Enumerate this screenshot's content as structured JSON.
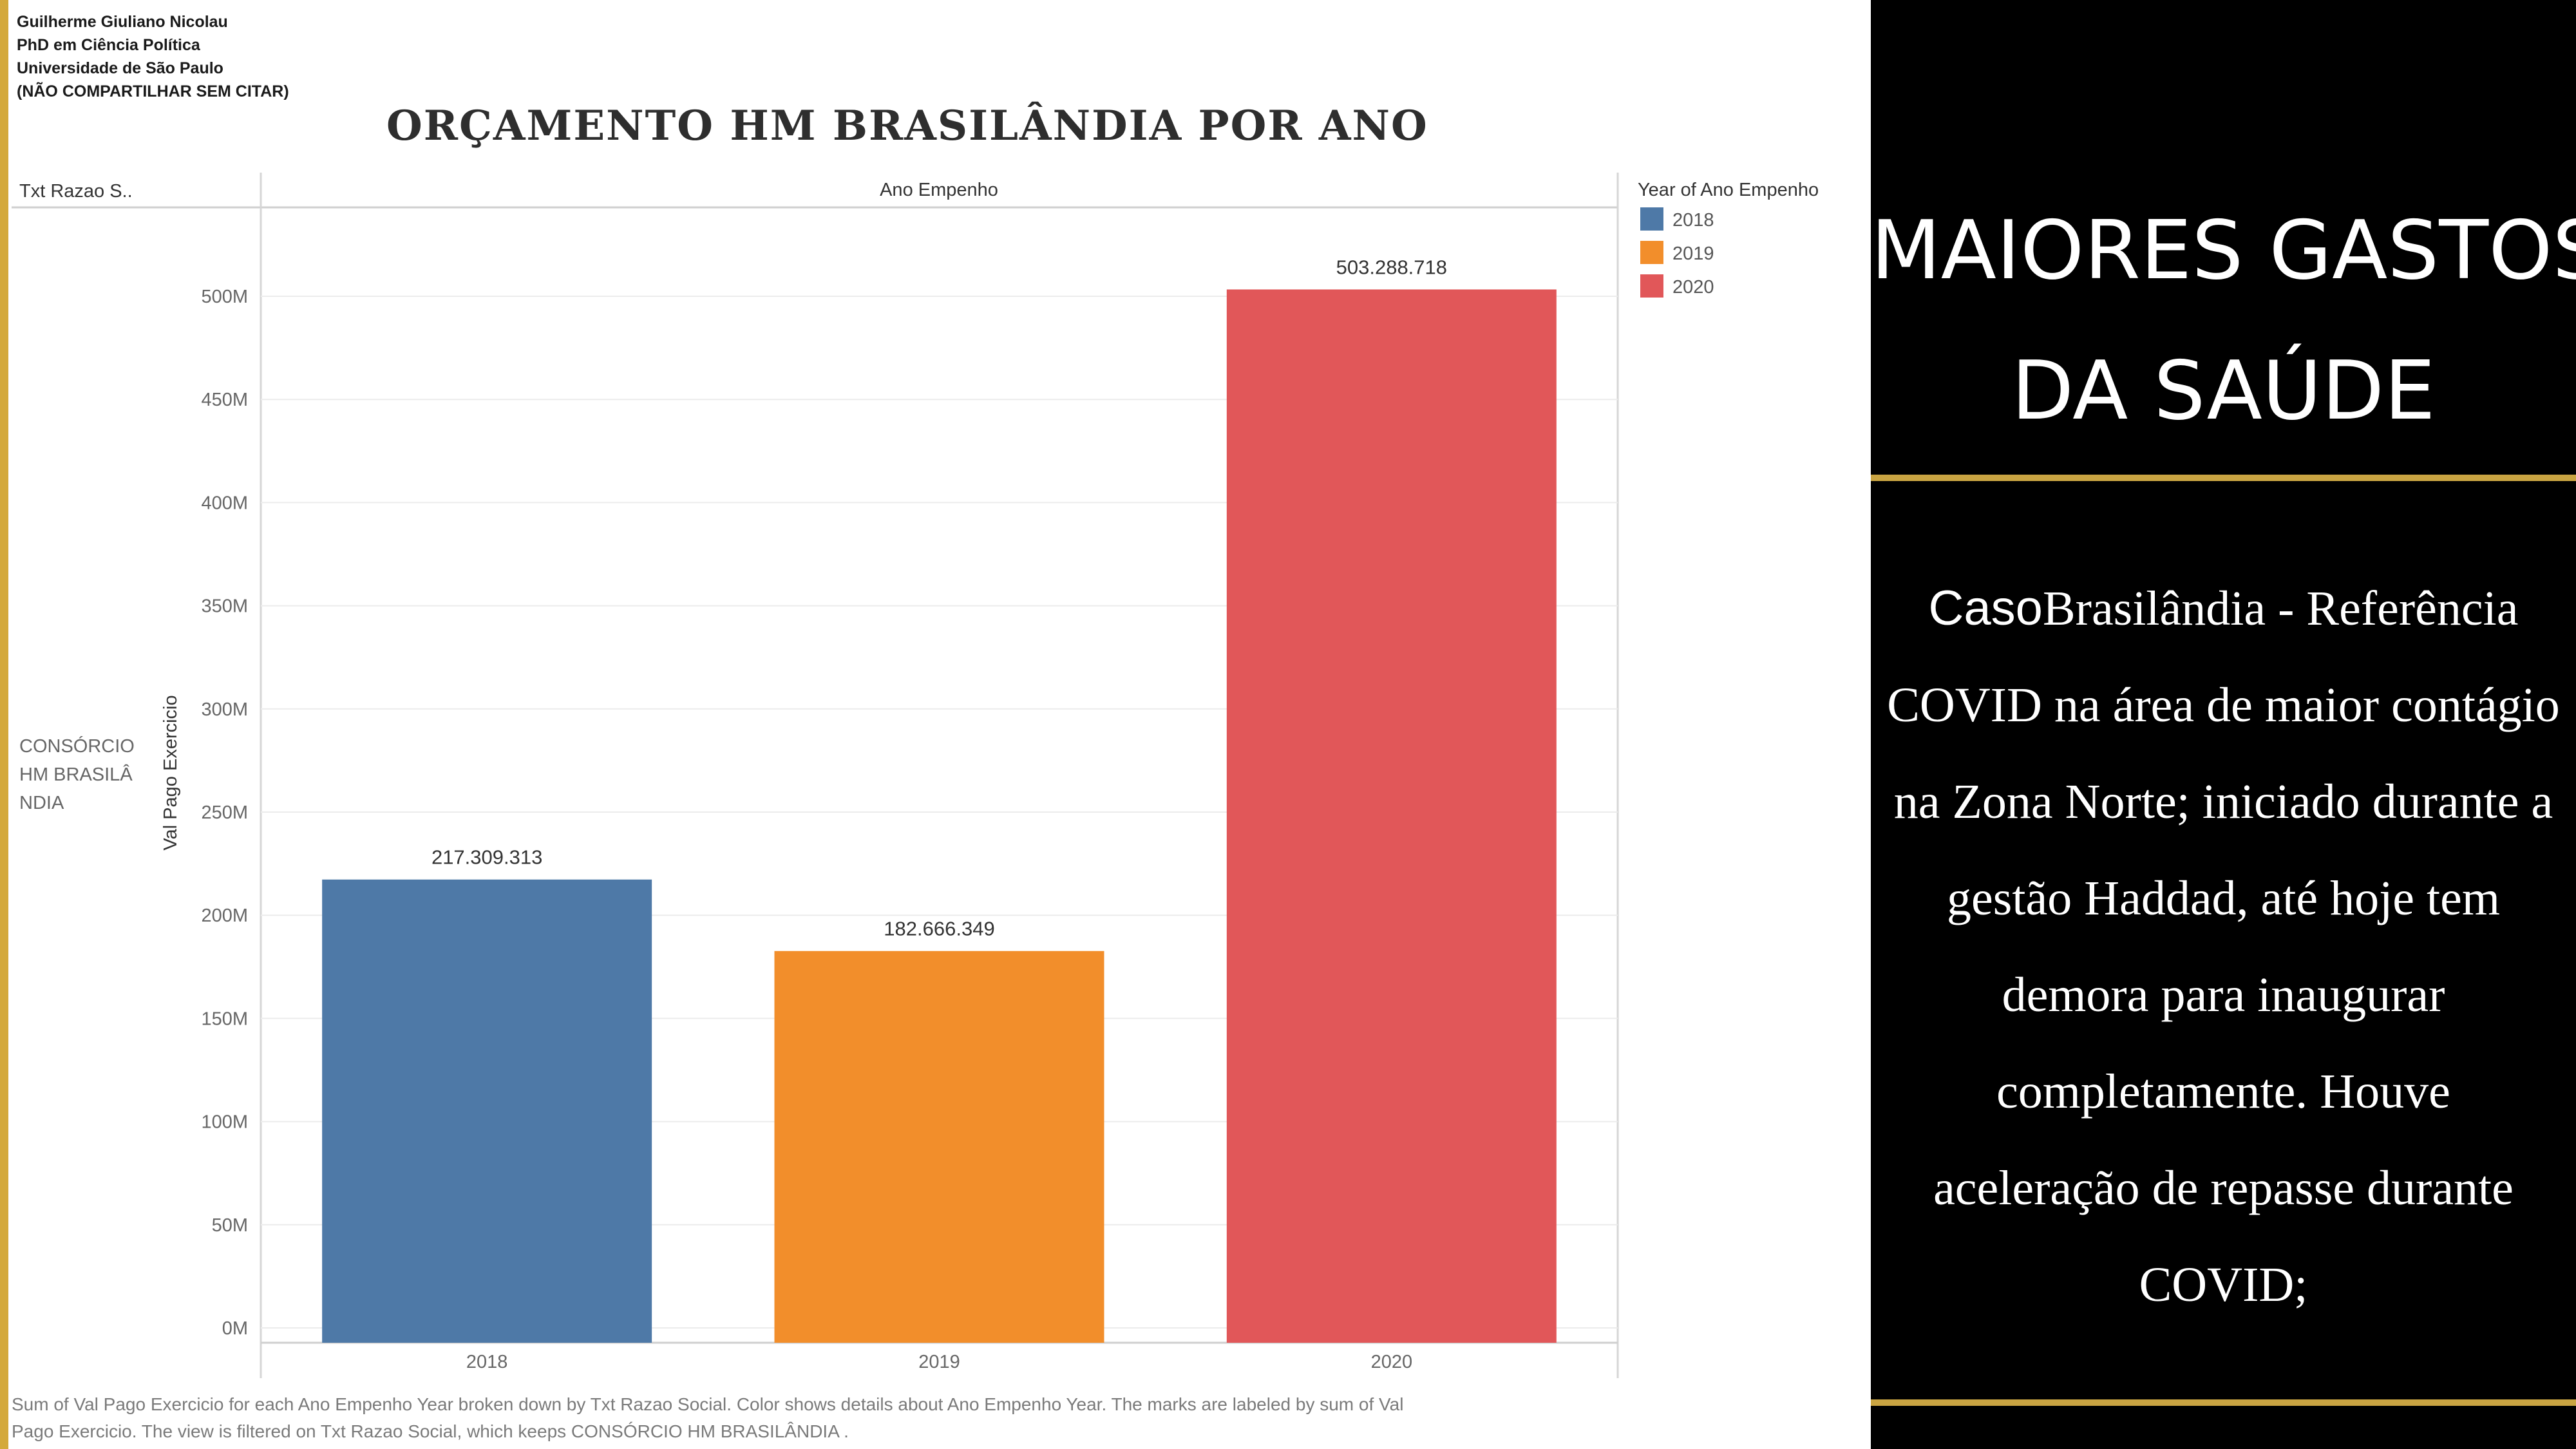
{
  "author": {
    "line1": "Guilherme Giuliano Nicolau",
    "line2": "PhD em Ciência Política",
    "line3": "Universidade de São Paulo",
    "line4": "(NÃO COMPARTILHAR SEM CITAR)"
  },
  "header_row": {
    "row_dim_label": "Txt Razao S..",
    "col_dim_label": "Ano Empenho"
  },
  "row_label_lines": [
    "CONSÓRCIO",
    "HM BRASILÂ",
    "NDIA"
  ],
  "legend": {
    "title": "Year of Ano Empenho",
    "items": [
      {
        "label": "2018",
        "color": "#4e79a7"
      },
      {
        "label": "2019",
        "color": "#f28e2b"
      },
      {
        "label": "2020",
        "color": "#e15759"
      }
    ]
  },
  "chart_data": {
    "type": "bar",
    "title": "ORÇAMENTO HM BRASILÂNDIA POR ANO",
    "xlabel": "",
    "ylabel": "Val Pago Exercicio",
    "categories": [
      "2018",
      "2019",
      "2020"
    ],
    "values": [
      217309313,
      182666349,
      503288718
    ],
    "value_labels": [
      "217.309.313",
      "182.666.349",
      "503.288.718"
    ],
    "colors": [
      "#4e79a7",
      "#f28e2b",
      "#e15759"
    ],
    "ylim": [
      0,
      532000000
    ],
    "yticks": [
      0,
      50000000,
      100000000,
      150000000,
      200000000,
      250000000,
      300000000,
      350000000,
      400000000,
      450000000,
      500000000
    ],
    "ytick_labels": [
      "0M",
      "50M",
      "100M",
      "150M",
      "200M",
      "250M",
      "300M",
      "350M",
      "400M",
      "450M",
      "500M"
    ],
    "grid": true,
    "legend_position": "right"
  },
  "footer": {
    "line1": "Sum of Val Pago Exercicio for each Ano Empenho Year broken down by Txt Razao Social.  Color shows details about Ano Empenho Year.  The marks are labeled by sum of Val",
    "line2": "Pago Exercicio. The view is filtered on Txt Razao Social, which keeps CONSÓRCIO HM BRASILÂNDIA ."
  },
  "panel": {
    "heading_line1": "MAIORES GASTOS",
    "heading_line2": "DA SAÚDE",
    "body_lead": "Caso",
    "body_lines": [
      "Brasilândia - Referência",
      "COVID na área de maior contágio",
      "na Zona Norte; iniciado durante a",
      "gestão Haddad, até hoje tem",
      "demora para inaugurar",
      "completamente. Houve",
      "aceleração de repasse durante",
      "COVID;"
    ]
  }
}
